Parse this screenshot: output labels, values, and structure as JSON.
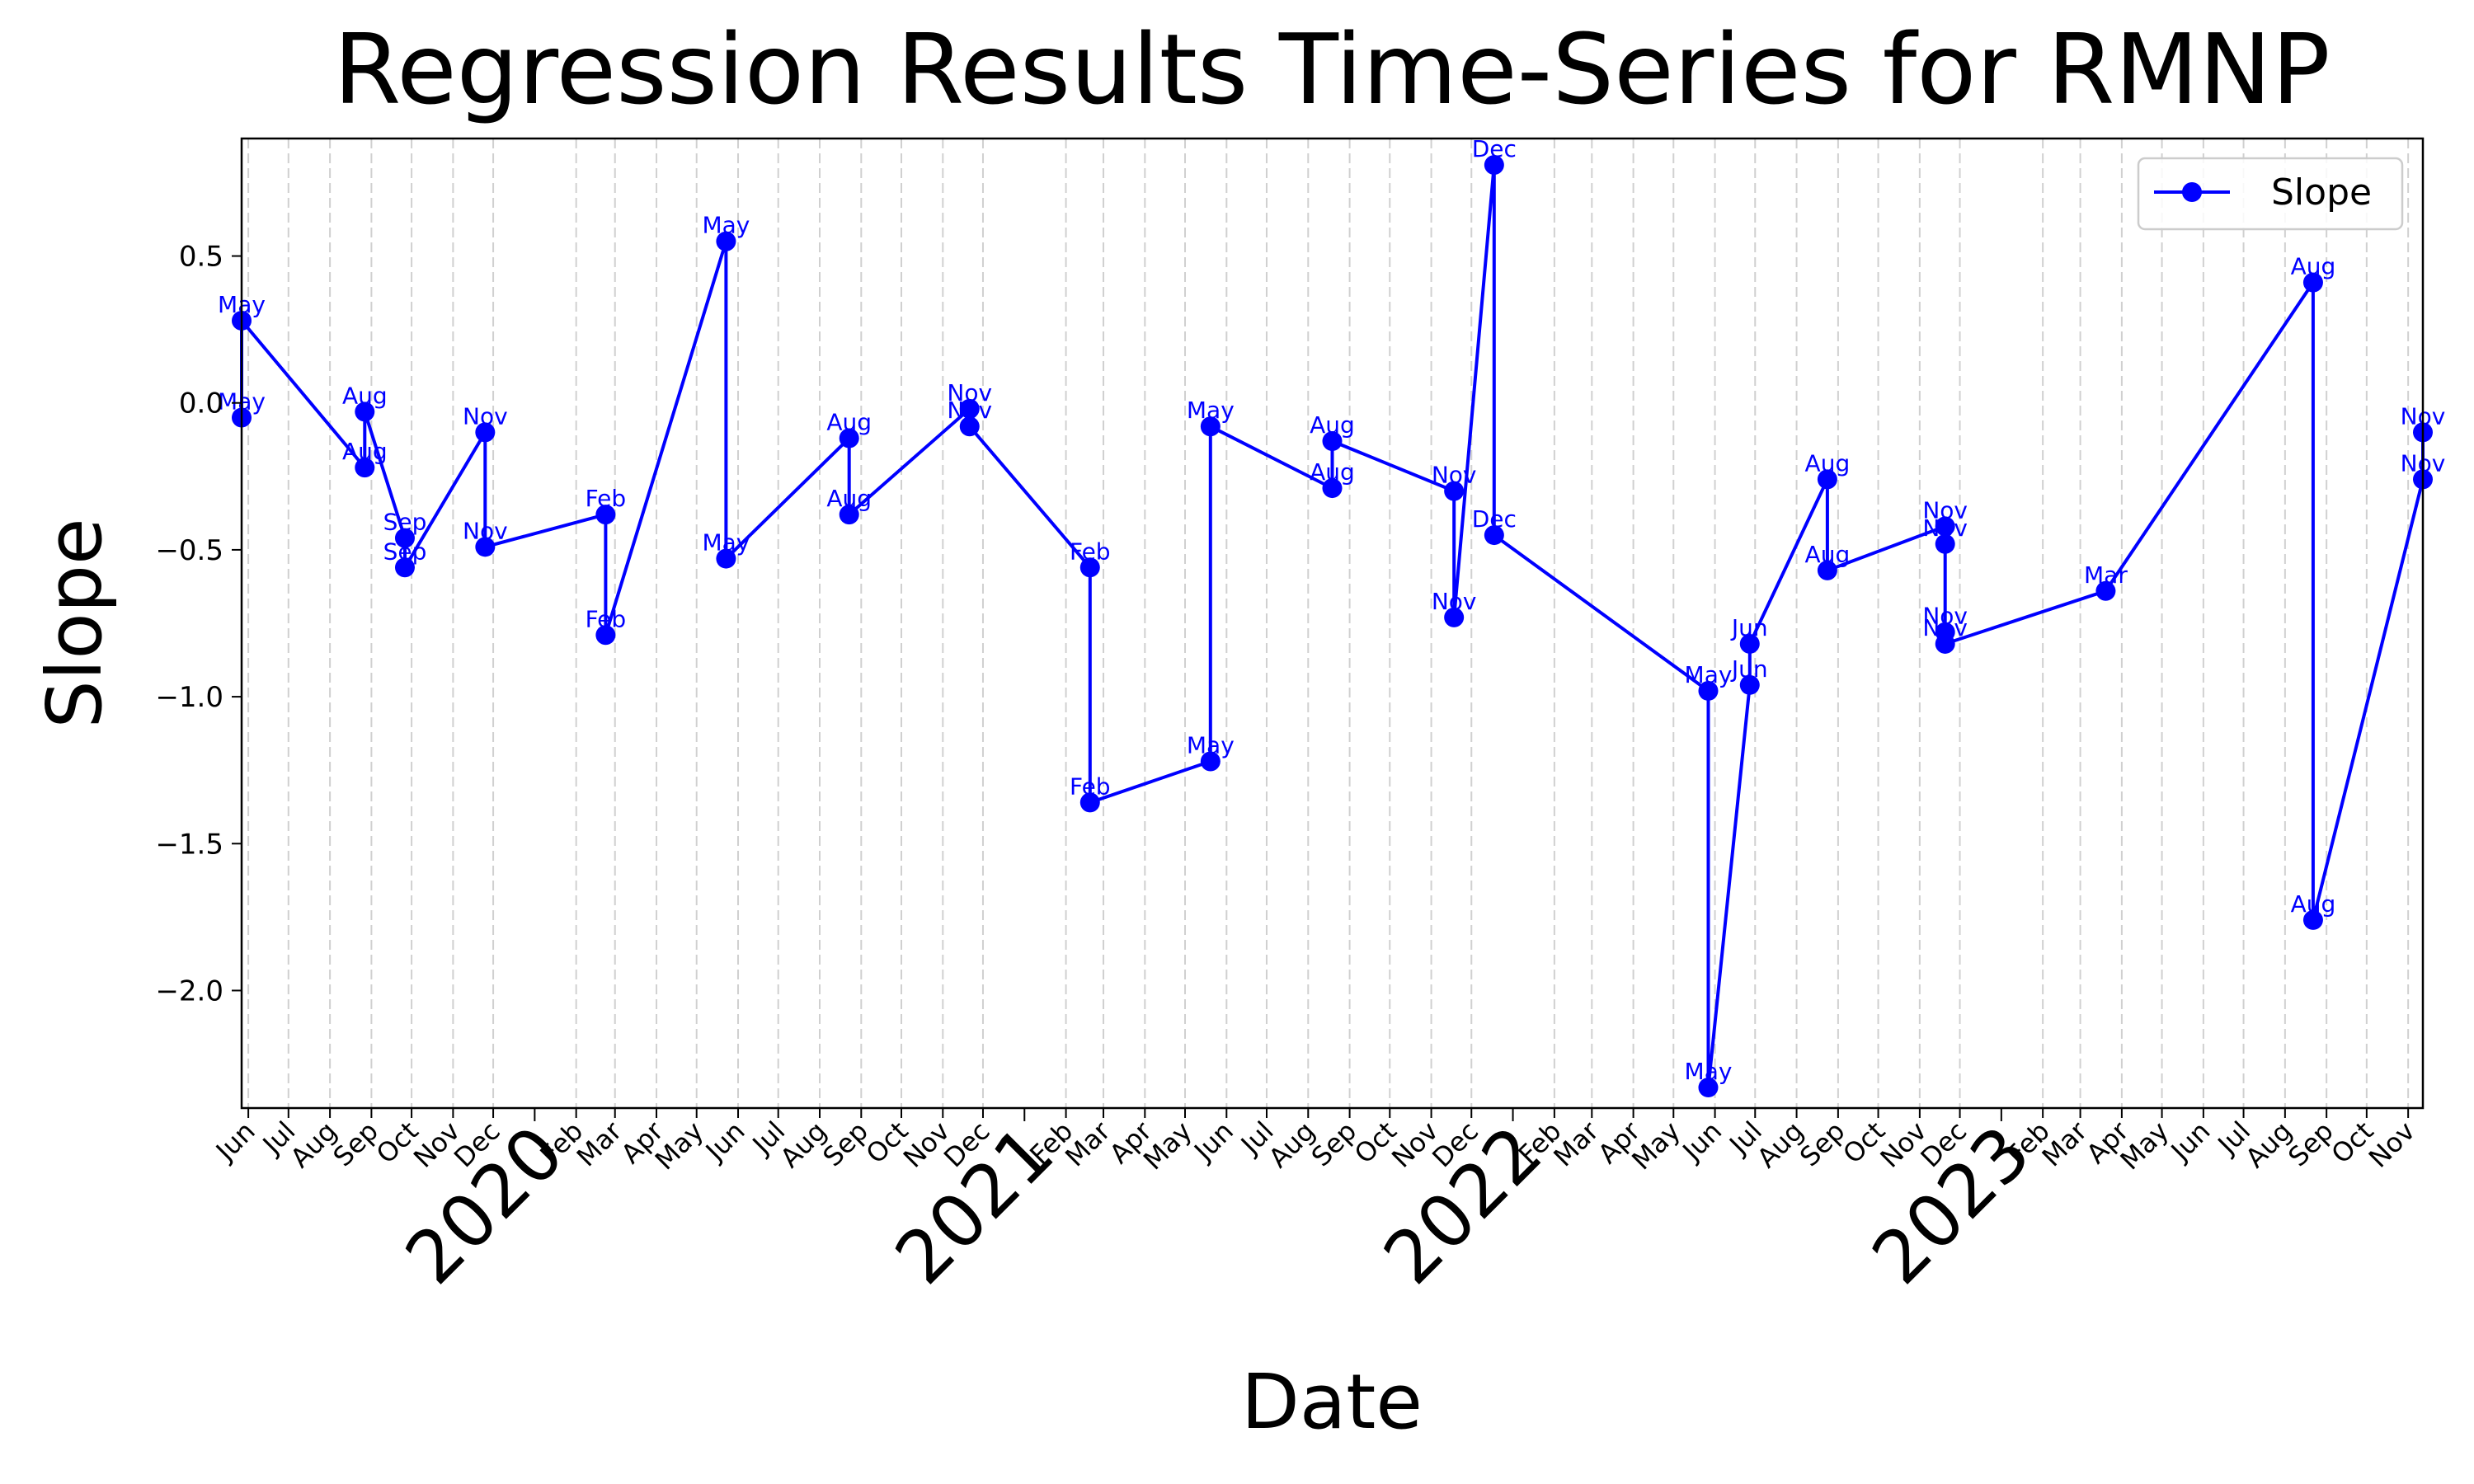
{
  "chart_data": {
    "type": "line",
    "title": "Regression Results Time-Series for RMNP",
    "xlabel": "Date",
    "ylabel": "Slope",
    "legend": {
      "placement": "top-right",
      "entries": [
        "Slope"
      ]
    },
    "grid": "vertical dashed lines at month ticks",
    "xlim": [
      "2019-05-27",
      "2023-11-12"
    ],
    "ylim": [
      -2.4,
      0.9
    ],
    "line_color": "#0000ff",
    "y_ticks": [
      {
        "value": 0.5,
        "label": "0.5"
      },
      {
        "value": 0.0,
        "label": "0.0"
      },
      {
        "value": -0.5,
        "label": "−0.5"
      },
      {
        "value": -1.0,
        "label": "−1.0"
      },
      {
        "value": -1.5,
        "label": "−1.5"
      },
      {
        "value": -2.0,
        "label": "−2.0"
      }
    ],
    "month_ticks": [
      {
        "date": "2019-06-01",
        "label": "Jun"
      },
      {
        "date": "2019-07-01",
        "label": "Jul"
      },
      {
        "date": "2019-08-01",
        "label": "Aug"
      },
      {
        "date": "2019-09-01",
        "label": "Sep"
      },
      {
        "date": "2019-10-01",
        "label": "Oct"
      },
      {
        "date": "2019-11-01",
        "label": "Nov"
      },
      {
        "date": "2019-12-01",
        "label": "Dec"
      },
      {
        "date": "2020-02-01",
        "label": "Feb"
      },
      {
        "date": "2020-03-01",
        "label": "Mar"
      },
      {
        "date": "2020-04-01",
        "label": "Apr"
      },
      {
        "date": "2020-05-01",
        "label": "May"
      },
      {
        "date": "2020-06-01",
        "label": "Jun"
      },
      {
        "date": "2020-07-01",
        "label": "Jul"
      },
      {
        "date": "2020-08-01",
        "label": "Aug"
      },
      {
        "date": "2020-09-01",
        "label": "Sep"
      },
      {
        "date": "2020-10-01",
        "label": "Oct"
      },
      {
        "date": "2020-11-01",
        "label": "Nov"
      },
      {
        "date": "2020-12-01",
        "label": "Dec"
      },
      {
        "date": "2021-02-01",
        "label": "Feb"
      },
      {
        "date": "2021-03-01",
        "label": "Mar"
      },
      {
        "date": "2021-04-01",
        "label": "Apr"
      },
      {
        "date": "2021-05-01",
        "label": "May"
      },
      {
        "date": "2021-06-01",
        "label": "Jun"
      },
      {
        "date": "2021-07-01",
        "label": "Jul"
      },
      {
        "date": "2021-08-01",
        "label": "Aug"
      },
      {
        "date": "2021-09-01",
        "label": "Sep"
      },
      {
        "date": "2021-10-01",
        "label": "Oct"
      },
      {
        "date": "2021-11-01",
        "label": "Nov"
      },
      {
        "date": "2021-12-01",
        "label": "Dec"
      },
      {
        "date": "2022-02-01",
        "label": "Feb"
      },
      {
        "date": "2022-03-01",
        "label": "Mar"
      },
      {
        "date": "2022-04-01",
        "label": "Apr"
      },
      {
        "date": "2022-05-01",
        "label": "May"
      },
      {
        "date": "2022-06-01",
        "label": "Jun"
      },
      {
        "date": "2022-07-01",
        "label": "Jul"
      },
      {
        "date": "2022-08-01",
        "label": "Aug"
      },
      {
        "date": "2022-09-01",
        "label": "Sep"
      },
      {
        "date": "2022-10-01",
        "label": "Oct"
      },
      {
        "date": "2022-11-01",
        "label": "Nov"
      },
      {
        "date": "2022-12-01",
        "label": "Dec"
      },
      {
        "date": "2023-02-01",
        "label": "Feb"
      },
      {
        "date": "2023-03-01",
        "label": "Mar"
      },
      {
        "date": "2023-04-01",
        "label": "Apr"
      },
      {
        "date": "2023-05-01",
        "label": "May"
      },
      {
        "date": "2023-06-01",
        "label": "Jun"
      },
      {
        "date": "2023-07-01",
        "label": "Jul"
      },
      {
        "date": "2023-08-01",
        "label": "Aug"
      },
      {
        "date": "2023-09-01",
        "label": "Sep"
      },
      {
        "date": "2023-10-01",
        "label": "Oct"
      },
      {
        "date": "2023-11-01",
        "label": "Nov"
      }
    ],
    "year_ticks": [
      {
        "date": "2020-01-01",
        "label": "2020"
      },
      {
        "date": "2021-01-01",
        "label": "2021"
      },
      {
        "date": "2022-01-01",
        "label": "2022"
      },
      {
        "date": "2023-01-01",
        "label": "2023"
      }
    ],
    "series": [
      {
        "name": "Slope",
        "points": [
          {
            "x": "2019-05-27",
            "y": -0.05,
            "label": "May"
          },
          {
            "x": "2019-05-27",
            "y": 0.28,
            "label": "May"
          },
          {
            "x": "2019-08-27",
            "y": -0.22,
            "label": "Aug"
          },
          {
            "x": "2019-08-27",
            "y": -0.03,
            "label": "Aug"
          },
          {
            "x": "2019-09-26",
            "y": -0.46,
            "label": "Sep"
          },
          {
            "x": "2019-09-26",
            "y": -0.56,
            "label": "Sep"
          },
          {
            "x": "2019-11-25",
            "y": -0.1,
            "label": "Nov"
          },
          {
            "x": "2019-11-25",
            "y": -0.49,
            "label": "Nov"
          },
          {
            "x": "2020-02-23",
            "y": -0.38,
            "label": "Feb"
          },
          {
            "x": "2020-02-23",
            "y": -0.79,
            "label": "Feb"
          },
          {
            "x": "2020-05-23",
            "y": 0.55,
            "label": "May"
          },
          {
            "x": "2020-05-23",
            "y": -0.53,
            "label": "May"
          },
          {
            "x": "2020-08-23",
            "y": -0.12,
            "label": "Aug"
          },
          {
            "x": "2020-08-23",
            "y": -0.38,
            "label": "Aug"
          },
          {
            "x": "2020-11-21",
            "y": -0.02,
            "label": "Nov"
          },
          {
            "x": "2020-11-21",
            "y": -0.08,
            "label": "Nov"
          },
          {
            "x": "2021-02-19",
            "y": -0.56,
            "label": "Feb"
          },
          {
            "x": "2021-02-19",
            "y": -1.36,
            "label": "Feb"
          },
          {
            "x": "2021-05-20",
            "y": -1.22,
            "label": "May"
          },
          {
            "x": "2021-05-20",
            "y": -0.08,
            "label": "May"
          },
          {
            "x": "2021-08-19",
            "y": -0.29,
            "label": "Aug"
          },
          {
            "x": "2021-08-19",
            "y": -0.13,
            "label": "Aug"
          },
          {
            "x": "2021-11-18",
            "y": -0.3,
            "label": "Nov"
          },
          {
            "x": "2021-11-18",
            "y": -0.73,
            "label": "Nov"
          },
          {
            "x": "2021-12-18",
            "y": 0.81,
            "label": "Dec"
          },
          {
            "x": "2021-12-18",
            "y": -0.45,
            "label": "Dec"
          },
          {
            "x": "2022-05-27",
            "y": -0.98,
            "label": "May"
          },
          {
            "x": "2022-05-27",
            "y": -2.33,
            "label": "May"
          },
          {
            "x": "2022-06-27",
            "y": -0.96,
            "label": "Jun"
          },
          {
            "x": "2022-06-27",
            "y": -0.82,
            "label": "Jun"
          },
          {
            "x": "2022-08-24",
            "y": -0.26,
            "label": "Aug"
          },
          {
            "x": "2022-08-24",
            "y": -0.57,
            "label": "Aug"
          },
          {
            "x": "2022-11-20",
            "y": -0.42,
            "label": "Nov"
          },
          {
            "x": "2022-11-20",
            "y": -0.48,
            "label": "Nov"
          },
          {
            "x": "2022-11-20",
            "y": -0.78,
            "label": "Nov"
          },
          {
            "x": "2022-11-20",
            "y": -0.82,
            "label": "Nov"
          },
          {
            "x": "2023-03-20",
            "y": -0.64,
            "label": "Mar"
          },
          {
            "x": "2023-08-22",
            "y": 0.41,
            "label": "Aug"
          },
          {
            "x": "2023-08-22",
            "y": -1.76,
            "label": "Aug"
          },
          {
            "x": "2023-11-12",
            "y": -0.26,
            "label": "Nov"
          },
          {
            "x": "2023-11-12",
            "y": -0.1,
            "label": "Nov"
          }
        ]
      }
    ]
  }
}
